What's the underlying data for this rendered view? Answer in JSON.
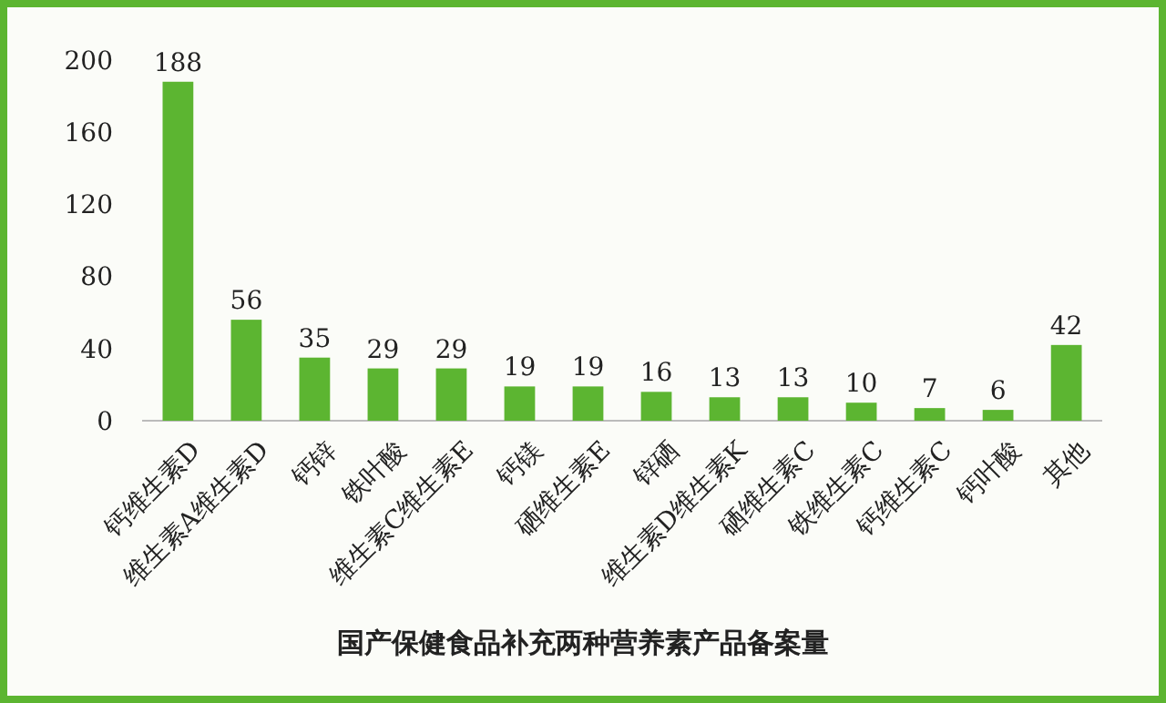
{
  "chart_data": {
    "type": "bar",
    "title": "国产保健食品补充两种营养素产品备案量",
    "categories": [
      "钙维生素D",
      "维生素A维生素D",
      "钙锌",
      "铁叶酸",
      "维生素C维生素E",
      "钙镁",
      "硒维生素E",
      "锌硒",
      "维生素D维生素K",
      "硒维生素C",
      "铁维生素C",
      "钙维生素C",
      "钙叶酸",
      "其他"
    ],
    "values": [
      188,
      56,
      35,
      29,
      29,
      19,
      19,
      16,
      13,
      13,
      10,
      7,
      6,
      42
    ],
    "color": "#5cb531",
    "ylim": [
      0,
      200
    ],
    "yticks": [
      0,
      40,
      80,
      120,
      160,
      200
    ],
    "grid": false,
    "data_labels": true
  }
}
